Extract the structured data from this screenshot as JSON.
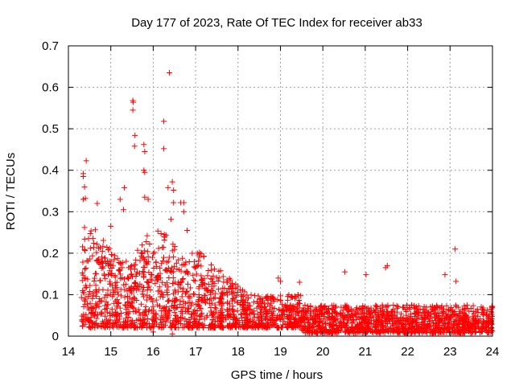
{
  "chart_data": {
    "type": "scatter",
    "title": "Day 177 of 2023, Rate Of TEC Index for receiver ab33",
    "xlabel": "GPS time / hours",
    "ylabel": "ROTI / TECUs",
    "xlim": [
      14,
      24
    ],
    "ylim": [
      0,
      0.7
    ],
    "x_ticks": [
      14,
      15,
      16,
      17,
      18,
      19,
      20,
      21,
      22,
      23,
      24
    ],
    "y_ticks": [
      0,
      0.1,
      0.2,
      0.3,
      0.4,
      0.5,
      0.6,
      0.7
    ],
    "grid": true,
    "marker": "+",
    "color": "#ff0000",
    "series": [
      {
        "name": "ROTI",
        "points": [
          [
            16.38,
            0.635
          ],
          [
            15.52,
            0.568
          ],
          [
            15.53,
            0.564
          ],
          [
            15.52,
            0.545
          ],
          [
            16.25,
            0.518
          ],
          [
            15.57,
            0.484
          ],
          [
            16.25,
            0.452
          ],
          [
            15.56,
            0.458
          ],
          [
            15.78,
            0.462
          ],
          [
            15.8,
            0.445
          ],
          [
            14.42,
            0.423
          ],
          [
            15.78,
            0.4
          ],
          [
            14.35,
            0.392
          ],
          [
            14.35,
            0.385
          ],
          [
            15.8,
            0.395
          ],
          [
            16.45,
            0.372
          ],
          [
            14.38,
            0.36
          ],
          [
            16.35,
            0.358
          ],
          [
            15.32,
            0.358
          ],
          [
            16.48,
            0.352
          ],
          [
            15.8,
            0.335
          ],
          [
            14.35,
            0.33
          ],
          [
            14.4,
            0.332
          ],
          [
            15.22,
            0.33
          ],
          [
            15.88,
            0.33
          ],
          [
            16.65,
            0.322
          ],
          [
            16.72,
            0.322
          ],
          [
            14.68,
            0.32
          ],
          [
            15.3,
            0.305
          ],
          [
            16.48,
            0.322
          ],
          [
            16.72,
            0.3
          ],
          [
            14.38,
            0.262
          ],
          [
            15.0,
            0.265
          ],
          [
            16.42,
            0.282
          ],
          [
            16.8,
            0.255
          ],
          [
            23.12,
            0.21
          ],
          [
            23.14,
            0.132
          ],
          [
            20.52,
            0.155
          ],
          [
            21.48,
            0.165
          ],
          [
            21.52,
            0.17
          ],
          [
            21.02,
            0.148
          ],
          [
            22.88,
            0.148
          ],
          [
            18.95,
            0.14
          ],
          [
            19.0,
            0.132
          ],
          [
            19.45,
            0.13
          ],
          [
            16.0,
            0.01
          ],
          [
            16.45,
            0.005
          ],
          [
            14.8,
            0.03
          ],
          [
            15.4,
            0.02
          ],
          [
            17.0,
            0.03
          ]
        ]
      }
    ]
  }
}
